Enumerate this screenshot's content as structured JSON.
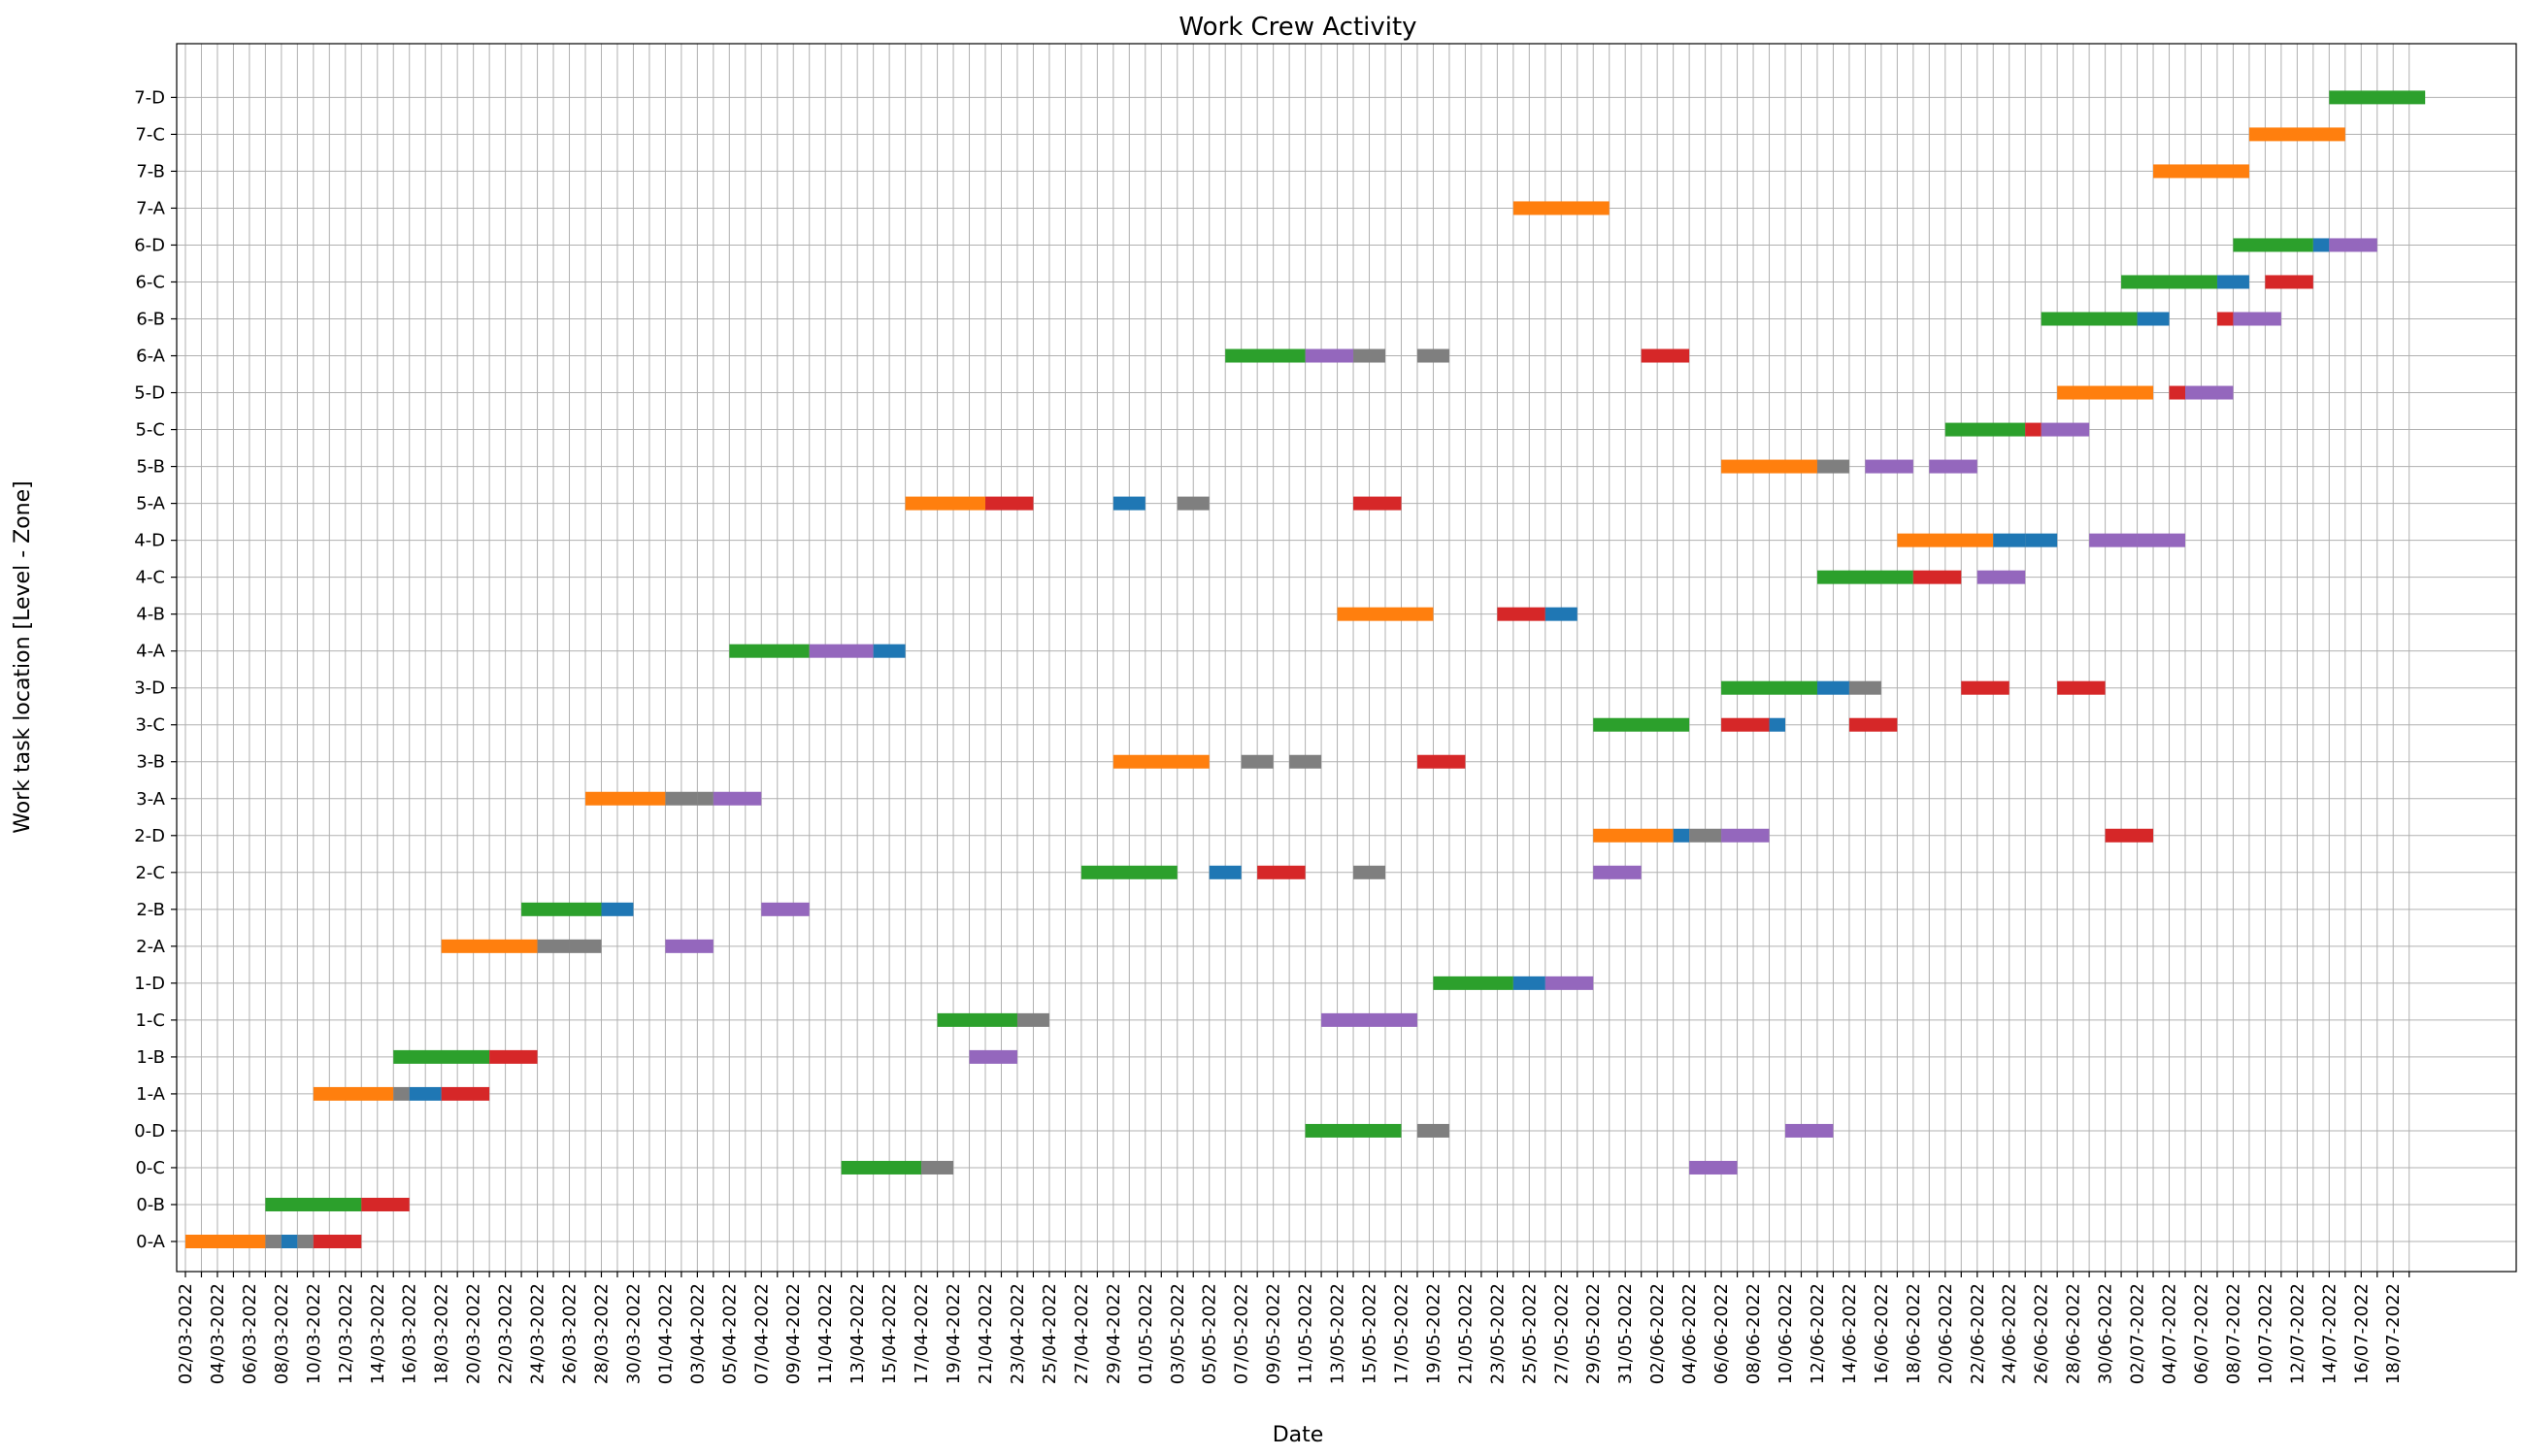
{
  "chart_data": {
    "type": "gantt",
    "title": "Work Crew Activity",
    "xlabel": "Date",
    "ylabel": "Work task location [Level - Zone]",
    "x_date_range": [
      "2022-03-01",
      "2022-07-20"
    ],
    "grid": true,
    "x_tick_labels": [
      "02/03-2022",
      "04/03-2022",
      "06/03-2022",
      "08/03-2022",
      "10/03-2022",
      "12/03-2022",
      "14/03-2022",
      "16/03-2022",
      "18/03-2022",
      "20/03-2022",
      "22/03-2022",
      "24/03-2022",
      "26/03-2022",
      "28/03-2022",
      "30/03-2022",
      "01/04-2022",
      "03/04-2022",
      "05/04-2022",
      "07/04-2022",
      "09/04-2022",
      "11/04-2022",
      "13/04-2022",
      "15/04-2022",
      "17/04-2022",
      "19/04-2022",
      "21/04-2022",
      "23/04-2022",
      "25/04-2022",
      "27/04-2022",
      "29/04-2022",
      "01/05-2022",
      "03/05-2022",
      "05/05-2022",
      "07/05-2022",
      "09/05-2022",
      "11/05-2022",
      "13/05-2022",
      "15/05-2022",
      "17/05-2022",
      "19/05-2022",
      "21/05-2022",
      "23/05-2022",
      "25/05-2022",
      "27/05-2022",
      "29/05-2022",
      "31/05-2022",
      "02/06-2022",
      "04/06-2022",
      "06/06-2022",
      "08/06-2022",
      "10/06-2022",
      "12/06-2022",
      "14/06-2022",
      "16/06-2022",
      "18/06-2022",
      "20/06-2022",
      "22/06-2022",
      "24/06-2022",
      "26/06-2022",
      "28/06-2022",
      "30/06-2022",
      "02/07-2022",
      "04/07-2022",
      "06/07-2022",
      "08/07-2022",
      "10/07-2022",
      "12/07-2022",
      "14/07-2022",
      "16/07-2022",
      "18/07-2022"
    ],
    "categories": [
      "0-A",
      "0-B",
      "0-C",
      "0-D",
      "1-A",
      "1-B",
      "1-C",
      "1-D",
      "2-A",
      "2-B",
      "2-C",
      "2-D",
      "3-A",
      "3-B",
      "3-C",
      "3-D",
      "4-A",
      "4-B",
      "4-C",
      "4-D",
      "5-A",
      "5-B",
      "5-C",
      "5-D",
      "6-A",
      "6-B",
      "6-C",
      "6-D",
      "7-A",
      "7-B",
      "7-C",
      "7-D"
    ],
    "crew_colors": {
      "orange": "#ff7f0e",
      "green": "#2ca02c",
      "gray": "#7f7f7f",
      "blue": "#1f77b4",
      "red": "#d62728",
      "purple": "#9467bd"
    },
    "tasks": [
      {
        "loc": "0-A",
        "crew": "orange",
        "start": "2022-03-02",
        "end": "2022-03-07"
      },
      {
        "loc": "0-A",
        "crew": "gray",
        "start": "2022-03-07",
        "end": "2022-03-08"
      },
      {
        "loc": "0-A",
        "crew": "blue",
        "start": "2022-03-08",
        "end": "2022-03-09"
      },
      {
        "loc": "0-A",
        "crew": "gray",
        "start": "2022-03-09",
        "end": "2022-03-10"
      },
      {
        "loc": "0-A",
        "crew": "red",
        "start": "2022-03-10",
        "end": "2022-03-13"
      },
      {
        "loc": "0-B",
        "crew": "green",
        "start": "2022-03-07",
        "end": "2022-03-13"
      },
      {
        "loc": "0-B",
        "crew": "red",
        "start": "2022-03-13",
        "end": "2022-03-16"
      },
      {
        "loc": "0-C",
        "crew": "green",
        "start": "2022-04-12",
        "end": "2022-04-17"
      },
      {
        "loc": "0-C",
        "crew": "gray",
        "start": "2022-04-17",
        "end": "2022-04-19"
      },
      {
        "loc": "0-C",
        "crew": "purple",
        "start": "2022-06-04",
        "end": "2022-06-07"
      },
      {
        "loc": "0-D",
        "crew": "green",
        "start": "2022-05-11",
        "end": "2022-05-17"
      },
      {
        "loc": "0-D",
        "crew": "gray",
        "start": "2022-05-18",
        "end": "2022-05-20"
      },
      {
        "loc": "0-D",
        "crew": "purple",
        "start": "2022-06-10",
        "end": "2022-06-13"
      },
      {
        "loc": "1-A",
        "crew": "orange",
        "start": "2022-03-10",
        "end": "2022-03-15"
      },
      {
        "loc": "1-A",
        "crew": "gray",
        "start": "2022-03-15",
        "end": "2022-03-16"
      },
      {
        "loc": "1-A",
        "crew": "blue",
        "start": "2022-03-16",
        "end": "2022-03-18"
      },
      {
        "loc": "1-A",
        "crew": "red",
        "start": "2022-03-18",
        "end": "2022-03-21"
      },
      {
        "loc": "1-B",
        "crew": "green",
        "start": "2022-03-15",
        "end": "2022-03-21"
      },
      {
        "loc": "1-B",
        "crew": "red",
        "start": "2022-03-21",
        "end": "2022-03-24"
      },
      {
        "loc": "1-C",
        "crew": "green",
        "start": "2022-04-18",
        "end": "2022-04-23"
      },
      {
        "loc": "1-C",
        "crew": "gray",
        "start": "2022-04-23",
        "end": "2022-04-25"
      },
      {
        "loc": "1-C",
        "crew": "purple",
        "start": "2022-05-12",
        "end": "2022-05-15"
      },
      {
        "loc": "1-C",
        "crew": "purple",
        "start": "2022-05-15",
        "end": "2022-05-18"
      },
      {
        "loc": "1-D",
        "crew": "green",
        "start": "2022-05-19",
        "end": "2022-05-24"
      },
      {
        "loc": "1-D",
        "crew": "blue",
        "start": "2022-05-24",
        "end": "2022-05-26"
      },
      {
        "loc": "1-D",
        "crew": "purple",
        "start": "2022-05-26",
        "end": "2022-05-29"
      },
      {
        "loc": "1-B",
        "crew": "purple",
        "start": "2022-04-20",
        "end": "2022-04-23"
      },
      {
        "loc": "2-A",
        "crew": "orange",
        "start": "2022-03-18",
        "end": "2022-03-24"
      },
      {
        "loc": "2-A",
        "crew": "gray",
        "start": "2022-03-24",
        "end": "2022-03-26"
      },
      {
        "loc": "2-A",
        "crew": "gray",
        "start": "2022-03-26",
        "end": "2022-03-28"
      },
      {
        "loc": "2-A",
        "crew": "purple",
        "start": "2022-04-01",
        "end": "2022-04-04"
      },
      {
        "loc": "2-B",
        "crew": "green",
        "start": "2022-03-23",
        "end": "2022-03-28"
      },
      {
        "loc": "2-B",
        "crew": "blue",
        "start": "2022-03-28",
        "end": "2022-03-30"
      },
      {
        "loc": "2-B",
        "crew": "purple",
        "start": "2022-04-07",
        "end": "2022-04-10"
      },
      {
        "loc": "2-C",
        "crew": "green",
        "start": "2022-04-27",
        "end": "2022-05-03"
      },
      {
        "loc": "2-C",
        "crew": "blue",
        "start": "2022-05-05",
        "end": "2022-05-07"
      },
      {
        "loc": "2-C",
        "crew": "red",
        "start": "2022-05-08",
        "end": "2022-05-11"
      },
      {
        "loc": "2-C",
        "crew": "gray",
        "start": "2022-05-14",
        "end": "2022-05-16"
      },
      {
        "loc": "2-C",
        "crew": "purple",
        "start": "2022-05-29",
        "end": "2022-06-01"
      },
      {
        "loc": "2-D",
        "crew": "orange",
        "start": "2022-05-29",
        "end": "2022-06-03"
      },
      {
        "loc": "2-D",
        "crew": "blue",
        "start": "2022-06-03",
        "end": "2022-06-04"
      },
      {
        "loc": "2-D",
        "crew": "gray",
        "start": "2022-06-04",
        "end": "2022-06-06"
      },
      {
        "loc": "2-D",
        "crew": "purple",
        "start": "2022-06-06",
        "end": "2022-06-09"
      },
      {
        "loc": "2-D",
        "crew": "red",
        "start": "2022-06-30",
        "end": "2022-07-03"
      },
      {
        "loc": "3-A",
        "crew": "orange",
        "start": "2022-03-27",
        "end": "2022-04-01"
      },
      {
        "loc": "3-A",
        "crew": "gray",
        "start": "2022-04-01",
        "end": "2022-04-03"
      },
      {
        "loc": "3-A",
        "crew": "gray",
        "start": "2022-04-03",
        "end": "2022-04-04"
      },
      {
        "loc": "3-A",
        "crew": "purple",
        "start": "2022-04-04",
        "end": "2022-04-07"
      },
      {
        "loc": "3-B",
        "crew": "orange",
        "start": "2022-04-29",
        "end": "2022-05-05"
      },
      {
        "loc": "3-B",
        "crew": "gray",
        "start": "2022-05-07",
        "end": "2022-05-09"
      },
      {
        "loc": "3-B",
        "crew": "gray",
        "start": "2022-05-10",
        "end": "2022-05-12"
      },
      {
        "loc": "3-B",
        "crew": "red",
        "start": "2022-05-18",
        "end": "2022-05-21"
      },
      {
        "loc": "3-C",
        "crew": "green",
        "start": "2022-05-29",
        "end": "2022-06-04"
      },
      {
        "loc": "3-C",
        "crew": "red",
        "start": "2022-06-06",
        "end": "2022-06-09"
      },
      {
        "loc": "3-C",
        "crew": "blue",
        "start": "2022-06-09",
        "end": "2022-06-10"
      },
      {
        "loc": "3-C",
        "crew": "red",
        "start": "2022-06-14",
        "end": "2022-06-17"
      },
      {
        "loc": "3-D",
        "crew": "green",
        "start": "2022-06-06",
        "end": "2022-06-12"
      },
      {
        "loc": "3-D",
        "crew": "blue",
        "start": "2022-06-12",
        "end": "2022-06-14"
      },
      {
        "loc": "3-D",
        "crew": "gray",
        "start": "2022-06-14",
        "end": "2022-06-16"
      },
      {
        "loc": "3-D",
        "crew": "red",
        "start": "2022-06-21",
        "end": "2022-06-24"
      },
      {
        "loc": "3-D",
        "crew": "red",
        "start": "2022-06-27",
        "end": "2022-06-30"
      },
      {
        "loc": "4-A",
        "crew": "green",
        "start": "2022-04-05",
        "end": "2022-04-10"
      },
      {
        "loc": "4-A",
        "crew": "purple",
        "start": "2022-04-10",
        "end": "2022-04-14"
      },
      {
        "loc": "4-A",
        "crew": "blue",
        "start": "2022-04-14",
        "end": "2022-04-16"
      },
      {
        "loc": "4-B",
        "crew": "orange",
        "start": "2022-05-13",
        "end": "2022-05-19"
      },
      {
        "loc": "4-B",
        "crew": "red",
        "start": "2022-05-23",
        "end": "2022-05-26"
      },
      {
        "loc": "4-B",
        "crew": "blue",
        "start": "2022-05-26",
        "end": "2022-05-28"
      },
      {
        "loc": "4-C",
        "crew": "green",
        "start": "2022-06-12",
        "end": "2022-06-18"
      },
      {
        "loc": "4-C",
        "crew": "red",
        "start": "2022-06-18",
        "end": "2022-06-21"
      },
      {
        "loc": "4-C",
        "crew": "purple",
        "start": "2022-06-22",
        "end": "2022-06-25"
      },
      {
        "loc": "4-D",
        "crew": "orange",
        "start": "2022-06-17",
        "end": "2022-06-23"
      },
      {
        "loc": "4-D",
        "crew": "blue",
        "start": "2022-06-23",
        "end": "2022-06-25"
      },
      {
        "loc": "4-D",
        "crew": "blue",
        "start": "2022-06-25",
        "end": "2022-06-27"
      },
      {
        "loc": "4-D",
        "crew": "purple",
        "start": "2022-06-29",
        "end": "2022-07-02"
      },
      {
        "loc": "4-D",
        "crew": "purple",
        "start": "2022-07-02",
        "end": "2022-07-05"
      },
      {
        "loc": "5-A",
        "crew": "orange",
        "start": "2022-04-16",
        "end": "2022-04-21"
      },
      {
        "loc": "5-A",
        "crew": "red",
        "start": "2022-04-21",
        "end": "2022-04-24"
      },
      {
        "loc": "5-A",
        "crew": "blue",
        "start": "2022-04-29",
        "end": "2022-05-01"
      },
      {
        "loc": "5-A",
        "crew": "gray",
        "start": "2022-05-03",
        "end": "2022-05-05"
      },
      {
        "loc": "5-A",
        "crew": "red",
        "start": "2022-05-14",
        "end": "2022-05-17"
      },
      {
        "loc": "5-B",
        "crew": "orange",
        "start": "2022-06-06",
        "end": "2022-06-12"
      },
      {
        "loc": "5-B",
        "crew": "gray",
        "start": "2022-06-12",
        "end": "2022-06-14"
      },
      {
        "loc": "5-B",
        "crew": "purple",
        "start": "2022-06-15",
        "end": "2022-06-18"
      },
      {
        "loc": "5-B",
        "crew": "purple",
        "start": "2022-06-19",
        "end": "2022-06-22"
      },
      {
        "loc": "5-C",
        "crew": "green",
        "start": "2022-06-20",
        "end": "2022-06-25"
      },
      {
        "loc": "5-C",
        "crew": "red",
        "start": "2022-06-25",
        "end": "2022-06-26"
      },
      {
        "loc": "5-C",
        "crew": "purple",
        "start": "2022-06-26",
        "end": "2022-06-29"
      },
      {
        "loc": "5-D",
        "crew": "orange",
        "start": "2022-06-27",
        "end": "2022-07-03"
      },
      {
        "loc": "5-D",
        "crew": "red",
        "start": "2022-07-04",
        "end": "2022-07-05"
      },
      {
        "loc": "5-D",
        "crew": "purple",
        "start": "2022-07-05",
        "end": "2022-07-08"
      },
      {
        "loc": "6-A",
        "crew": "green",
        "start": "2022-05-06",
        "end": "2022-05-11"
      },
      {
        "loc": "6-A",
        "crew": "purple",
        "start": "2022-05-11",
        "end": "2022-05-14"
      },
      {
        "loc": "6-A",
        "crew": "gray",
        "start": "2022-05-14",
        "end": "2022-05-16"
      },
      {
        "loc": "6-A",
        "crew": "gray",
        "start": "2022-05-18",
        "end": "2022-05-20"
      },
      {
        "loc": "6-A",
        "crew": "red",
        "start": "2022-06-01",
        "end": "2022-06-04"
      },
      {
        "loc": "6-B",
        "crew": "green",
        "start": "2022-06-26",
        "end": "2022-07-02"
      },
      {
        "loc": "6-B",
        "crew": "blue",
        "start": "2022-07-02",
        "end": "2022-07-04"
      },
      {
        "loc": "6-B",
        "crew": "red",
        "start": "2022-07-07",
        "end": "2022-07-08"
      },
      {
        "loc": "6-B",
        "crew": "purple",
        "start": "2022-07-08",
        "end": "2022-07-11"
      },
      {
        "loc": "6-C",
        "crew": "green",
        "start": "2022-07-01",
        "end": "2022-07-07"
      },
      {
        "loc": "6-C",
        "crew": "blue",
        "start": "2022-07-07",
        "end": "2022-07-09"
      },
      {
        "loc": "6-C",
        "crew": "red",
        "start": "2022-07-10",
        "end": "2022-07-13"
      },
      {
        "loc": "6-D",
        "crew": "green",
        "start": "2022-07-08",
        "end": "2022-07-13"
      },
      {
        "loc": "6-D",
        "crew": "blue",
        "start": "2022-07-13",
        "end": "2022-07-14"
      },
      {
        "loc": "6-D",
        "crew": "purple",
        "start": "2022-07-14",
        "end": "2022-07-17"
      },
      {
        "loc": "7-A",
        "crew": "orange",
        "start": "2022-05-24",
        "end": "2022-05-30"
      },
      {
        "loc": "7-B",
        "crew": "orange",
        "start": "2022-07-03",
        "end": "2022-07-09"
      },
      {
        "loc": "7-C",
        "crew": "orange",
        "start": "2022-07-09",
        "end": "2022-07-15"
      },
      {
        "loc": "7-D",
        "crew": "green",
        "start": "2022-07-14",
        "end": "2022-07-20"
      }
    ]
  }
}
